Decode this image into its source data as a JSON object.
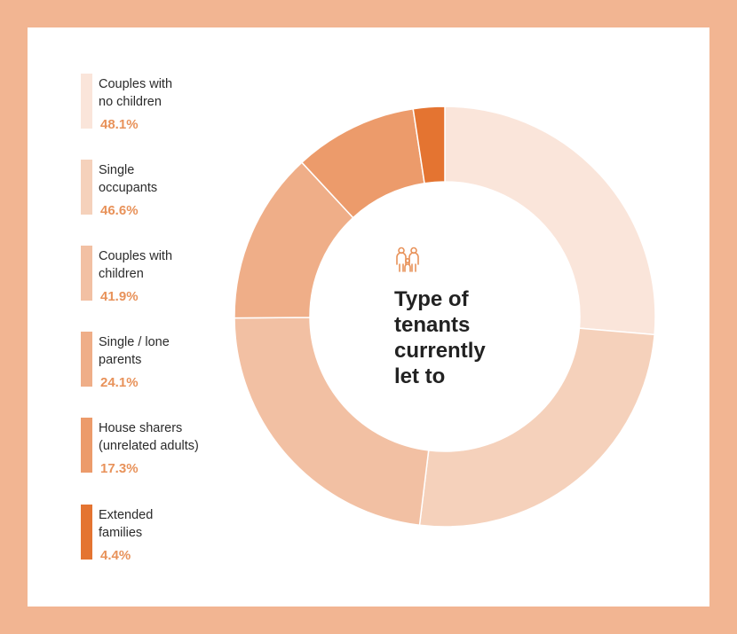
{
  "chart_data": {
    "type": "pie",
    "title": "Type of tenants currently let to",
    "title_lines": [
      "Type of",
      "tenants",
      "currently",
      "let to"
    ],
    "center_icon": "family-icon",
    "categories": [
      "Couples with no children",
      "Single occupants",
      "Couples with children",
      "Single / lone parents",
      "House sharers (unrelated adults)",
      "Extended families"
    ],
    "values": [
      48.1,
      46.6,
      41.9,
      24.1,
      17.3,
      4.4
    ],
    "value_labels": [
      "48.1%",
      "46.6%",
      "41.9%",
      "24.1%",
      "17.3%",
      "4.4%"
    ],
    "colors": [
      "#fae5da",
      "#f5d1bb",
      "#f2c0a3",
      "#efae88",
      "#ec9b6b",
      "#e47431"
    ],
    "legend": {
      "placement": "left",
      "items": [
        {
          "label_lines": [
            "Couples with",
            "no children"
          ],
          "value": "48.1%"
        },
        {
          "label_lines": [
            "Single",
            "occupants"
          ],
          "value": "46.6%"
        },
        {
          "label_lines": [
            "Couples with",
            "children"
          ],
          "value": "41.9%"
        },
        {
          "label_lines": [
            "Single / lone",
            "parents"
          ],
          "value": "24.1%"
        },
        {
          "label_lines": [
            "House sharers",
            "(unrelated adults)"
          ],
          "value": "17.3%"
        },
        {
          "label_lines": [
            "Extended",
            "families"
          ],
          "value": "4.4%"
        }
      ]
    }
  },
  "colors": {
    "border": "#f2b592",
    "card": "#ffffff",
    "value_text": "#e8925a",
    "title_text": "#222222",
    "icon": "#e8925a"
  }
}
